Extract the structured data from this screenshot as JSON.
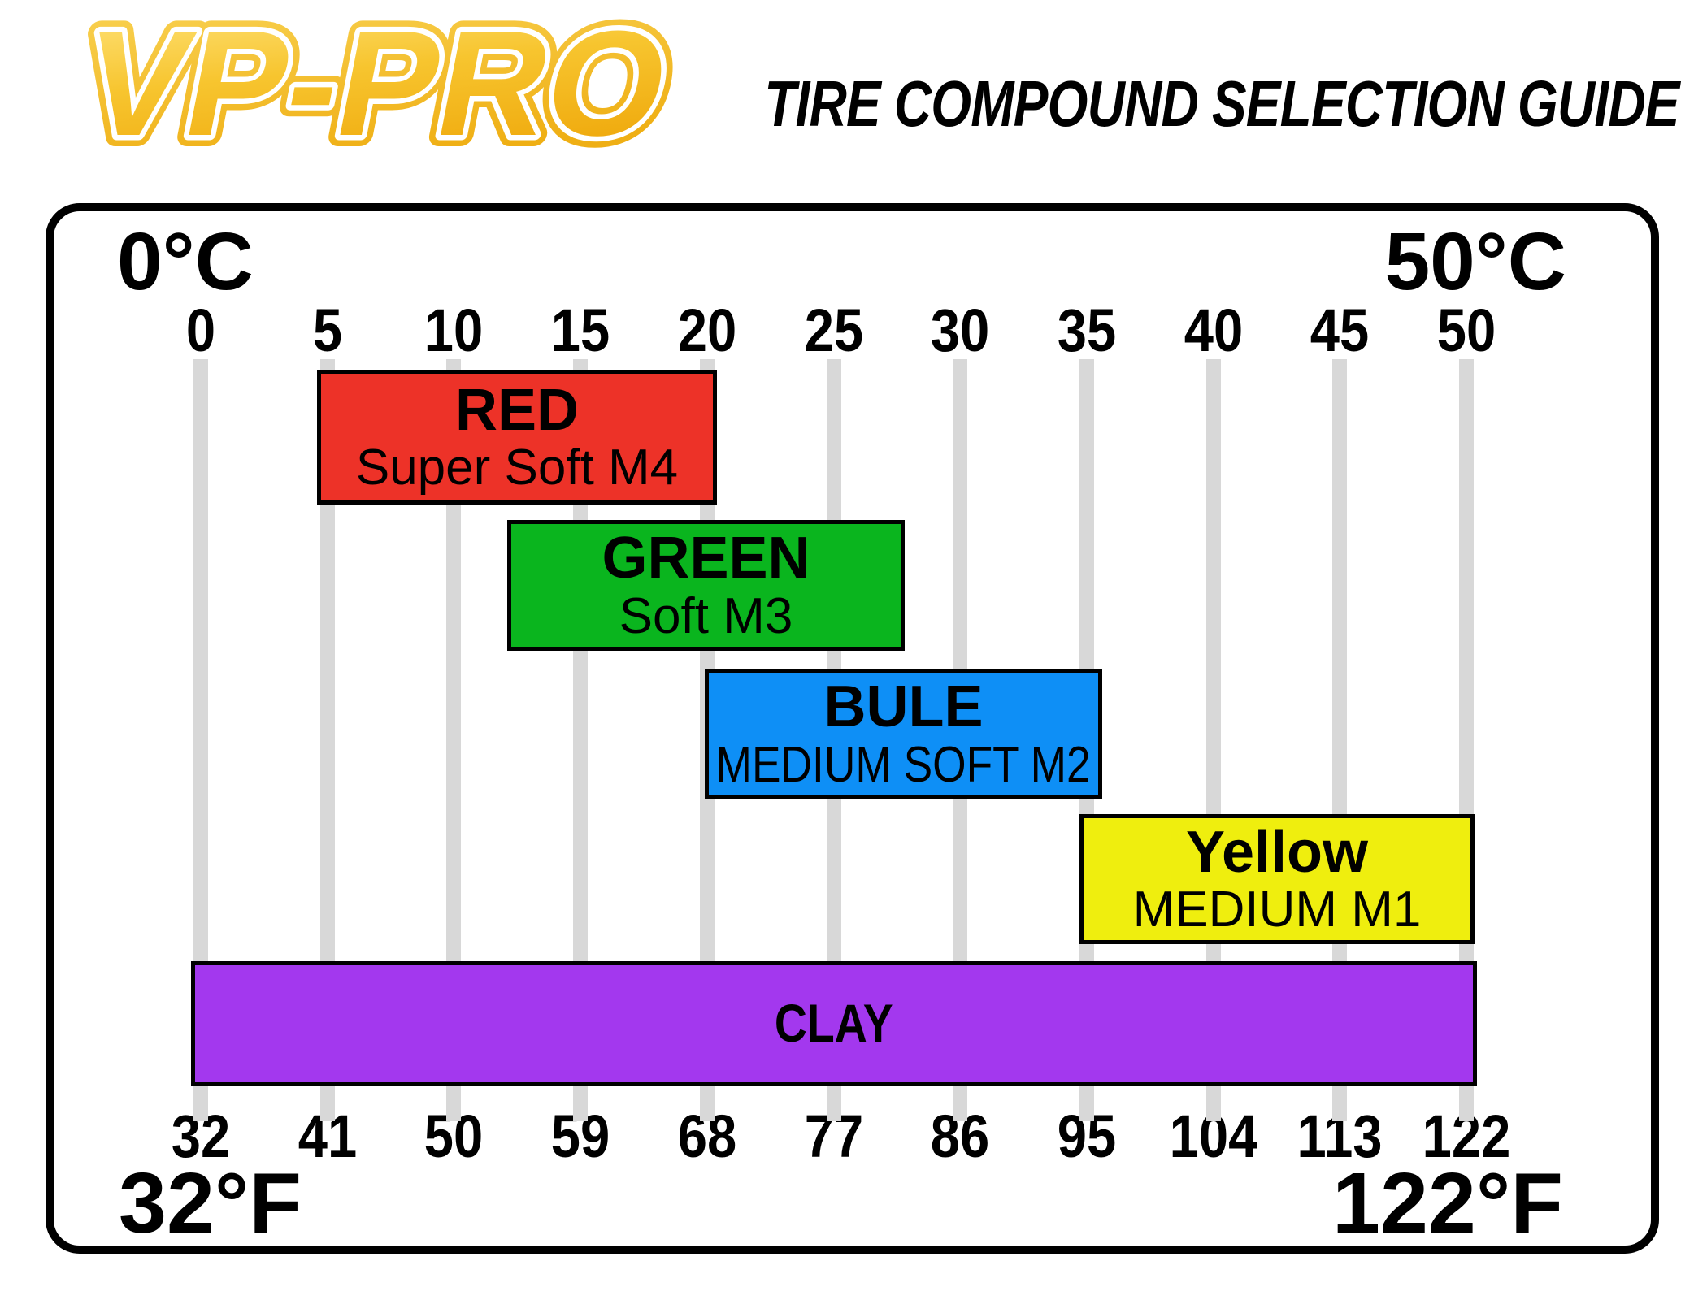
{
  "logo": {
    "text": "VP-PRO"
  },
  "header": {
    "title": "TIRE COMPOUND SELECTION GUIDE"
  },
  "panel": {
    "corner_labels": {
      "top_left": "0°C",
      "top_right": "50°C",
      "bottom_left": "32°F",
      "bottom_right": "122°F"
    }
  },
  "scale_c": {
    "unit": "°C",
    "ticks": [
      "0",
      "5",
      "10",
      "15",
      "20",
      "25",
      "30",
      "35",
      "40",
      "45",
      "50"
    ]
  },
  "scale_f": {
    "unit": "°F",
    "ticks": [
      "32",
      "41",
      "50",
      "59",
      "68",
      "77",
      "86",
      "95",
      "104",
      "113",
      "122"
    ]
  },
  "colors": {
    "red": "#ED3228",
    "green": "#0AB51E",
    "blue": "#0E8FF6",
    "yellow": "#EFEE0E",
    "clay": "#A338EE",
    "tick_line": "#D8D8D8",
    "panel_border": "#000000",
    "brand_gold": "#F5BE27",
    "text": "#000000"
  },
  "chart_data": {
    "type": "bar",
    "orientation": "horizontal-range-bars",
    "title": "TIRE COMPOUND SELECTION GUIDE",
    "x_axis_top": {
      "unit": "°C",
      "min": 0,
      "max": 50,
      "ticks": [
        0,
        5,
        10,
        15,
        20,
        25,
        30,
        35,
        40,
        45,
        50
      ],
      "label_left": "0°C",
      "label_right": "50°C"
    },
    "x_axis_bottom": {
      "unit": "°F",
      "min": 32,
      "max": 122,
      "ticks": [
        32,
        41,
        50,
        59,
        68,
        77,
        86,
        95,
        104,
        113,
        122
      ],
      "label_left": "32°F",
      "label_right": "122°F"
    },
    "grid": "vertical gray tick lines",
    "series": [
      {
        "name": "RED",
        "compound": "Super Soft M4",
        "color": "#ED3228",
        "range_c": [
          4.6,
          20.4
        ],
        "range_f": [
          40,
          69
        ]
      },
      {
        "name": "GREEN",
        "compound": "Soft M3",
        "color": "#0AB51E",
        "range_c": [
          12.1,
          27.8
        ],
        "range_f": [
          54,
          82
        ]
      },
      {
        "name": "BULE",
        "compound": "MEDIUM SOFT M2",
        "color": "#0E8FF6",
        "range_c": [
          19.9,
          35.6
        ],
        "range_f": [
          68,
          96
        ]
      },
      {
        "name": "Yellow",
        "compound": "MEDIUM M1",
        "color": "#EFEE0E",
        "range_c": [
          34.7,
          50.3
        ],
        "range_f": [
          94,
          122
        ]
      },
      {
        "name": "CLAY",
        "compound": "",
        "color": "#A338EE",
        "range_c": [
          -0.4,
          50.4
        ],
        "range_f": [
          32,
          122
        ]
      }
    ]
  }
}
